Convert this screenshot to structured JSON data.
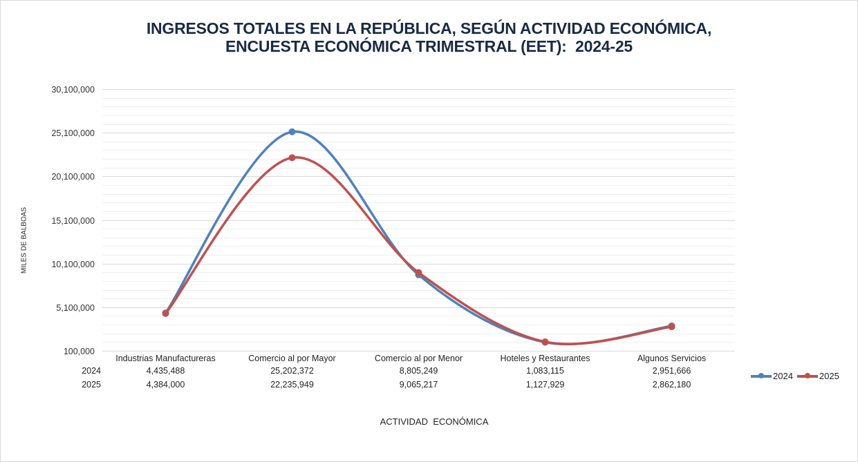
{
  "chart_data": {
    "type": "line",
    "title": [
      "INGRESOS TOTALES EN LA REPÚBLICA, SEGÚN ACTIVIDAD ECONÓMICA,",
      "ENCUESTA ECONÓMICA TRIMESTRAL (EET):  2024-25"
    ],
    "xlabel": "ACTIVIDAD  ECONÓMICA",
    "ylabel": "MILES DE BALBOAS",
    "ylim": [
      100000,
      30100000
    ],
    "yticks": [
      100000,
      5100000,
      10100000,
      15100000,
      20100000,
      25100000,
      30100000
    ],
    "ytick_labels": [
      "100,000",
      "5,100,000",
      "10,100,000",
      "15,100,000",
      "20,100,000",
      "25,100,000",
      "30,100,000"
    ],
    "minor_step": 1000000,
    "grid": true,
    "smooth": true,
    "categories": [
      "Industrias Manufactureras",
      "Comercio al por Mayor",
      "Comercio al por Menor",
      "Hoteles y Restaurantes",
      "Algunos Servicios"
    ],
    "series": [
      {
        "name": "2024",
        "color": "#4f81bd",
        "values": [
          4435488,
          25202372,
          8805249,
          1083115,
          2951666
        ],
        "labels": [
          "4,435,488",
          "25,202,372",
          "8,805,249",
          "1,083,115",
          "2,951,666"
        ]
      },
      {
        "name": "2025",
        "color": "#c0504d",
        "values": [
          4384000,
          22235949,
          9065217,
          1127929,
          2862180
        ],
        "labels": [
          "4,384,000",
          "22,235,949",
          "9,065,217",
          "1,127,929",
          "2,862,180"
        ]
      }
    ],
    "legend_position": "right",
    "data_table": true
  }
}
